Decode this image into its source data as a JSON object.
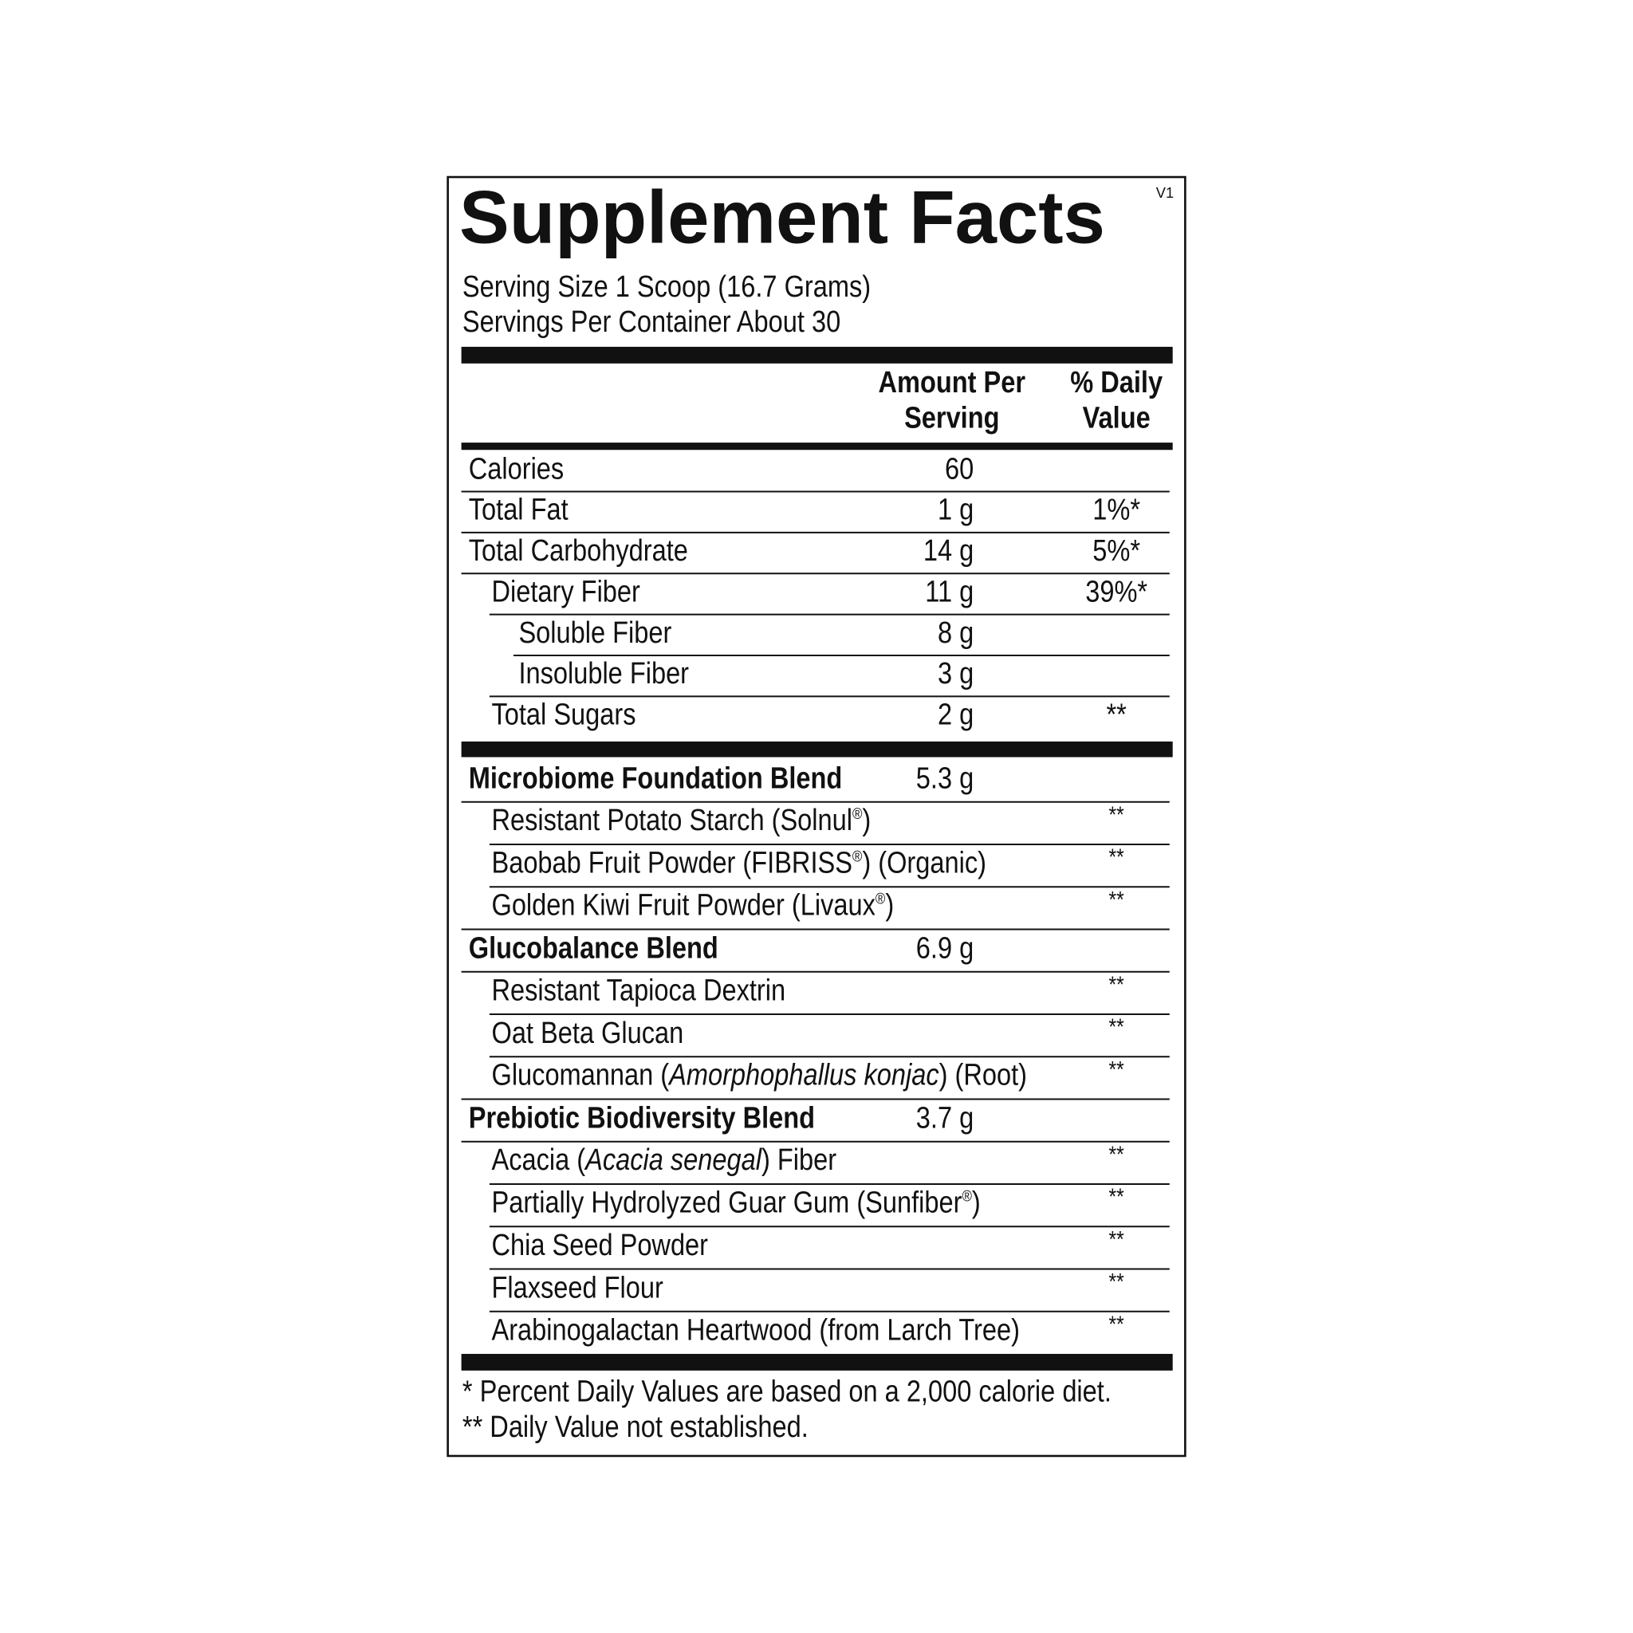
{
  "title": "Supplement Facts",
  "version": "V1",
  "serving": [
    "Serving Size 1 Scoop (16.7 Grams)",
    "Servings Per Container About 30"
  ],
  "header": {
    "amount": [
      "Amount Per",
      "Serving"
    ],
    "daily_value": [
      "% Daily",
      "Value"
    ]
  },
  "nutrients": [
    {
      "name": "Calories",
      "amount": "60"
    },
    {
      "name": "Total Fat",
      "amount": "1 g",
      "dv": "1%*"
    },
    {
      "name": "Total Carbohydrate",
      "amount": "14 g",
      "dv": "5%*",
      "sub": [
        {
          "name": "Dietary Fiber",
          "amount": "11 g",
          "dv": "39%*",
          "sub": [
            {
              "name": "Soluble Fiber",
              "amount": "8 g"
            },
            {
              "name": "Insoluble Fiber",
              "amount": "3 g"
            }
          ]
        },
        {
          "name": "Total Sugars",
          "amount": "2 g",
          "dv": "**"
        }
      ]
    }
  ],
  "blends": [
    {
      "name": "Microbiome Foundation Blend",
      "amount": "5.3 g",
      "ingredients": [
        {
          "name": [
            {
              "text": "Resistant Potato Starch (Solnul"
            },
            {
              "text": "®",
              "sup": true
            },
            {
              "text": ")"
            }
          ],
          "dv": "**"
        },
        {
          "name": [
            {
              "text": "Baobab Fruit Powder (FIBRISS"
            },
            {
              "text": "®",
              "sup": true
            },
            {
              "text": ") (Organic)"
            }
          ],
          "dv": "**"
        },
        {
          "name": [
            {
              "text": "Golden Kiwi Fruit Powder (Livaux"
            },
            {
              "text": "®",
              "sup": true
            },
            {
              "text": ")"
            }
          ],
          "dv": "**"
        }
      ]
    },
    {
      "name": "Glucobalance Blend",
      "amount": "6.9 g",
      "ingredients": [
        {
          "name": "Resistant Tapioca Dextrin",
          "dv": "**"
        },
        {
          "name": "Oat Beta Glucan",
          "dv": "**"
        },
        {
          "name": [
            {
              "text": "Glucomannan ("
            },
            {
              "text": "Amorphophallus konjac",
              "italic": true
            },
            {
              "text": ") (Root)"
            }
          ],
          "dv": "**"
        }
      ]
    },
    {
      "name": "Prebiotic Biodiversity Blend",
      "amount": "3.7 g",
      "ingredients": [
        {
          "name": [
            {
              "text": "Acacia ("
            },
            {
              "text": "Acacia senegal",
              "italic": true
            },
            {
              "text": ") Fiber"
            }
          ],
          "dv": "**"
        },
        {
          "name": [
            {
              "text": "Partially Hydrolyzed Guar Gum (Sunfiber"
            },
            {
              "text": "®",
              "sup": true
            },
            {
              "text": ")"
            }
          ],
          "dv": "**"
        },
        {
          "name": "Chia Seed Powder",
          "dv": "**"
        },
        {
          "name": "Flaxseed Flour",
          "dv": "**"
        },
        {
          "name": "Arabinogalactan Heartwood (from Larch Tree)",
          "dv": "**"
        }
      ]
    }
  ],
  "footnotes": [
    "* Percent Daily Values are based on a 2,000 calorie diet.",
    "** Daily Value not established."
  ]
}
